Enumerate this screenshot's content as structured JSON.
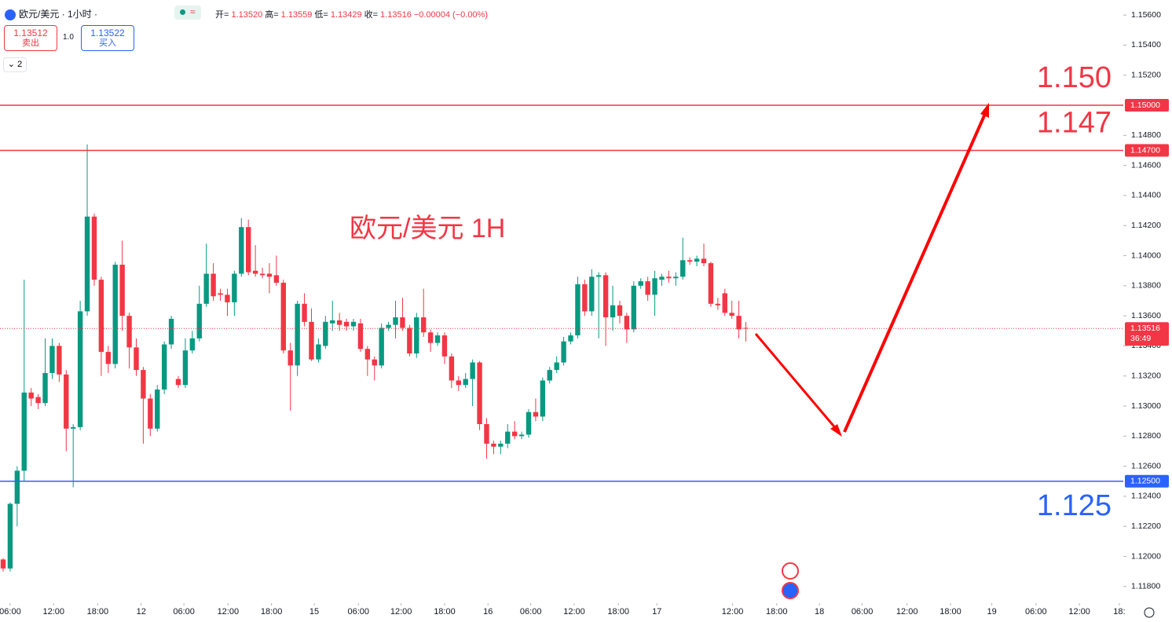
{
  "header": {
    "symbol": "欧元/美元 · 1小时 ·",
    "ohlc": [
      {
        "label": "开=",
        "value": "1.13520"
      },
      {
        "label": "高=",
        "value": "1.13559"
      },
      {
        "label": "低=",
        "value": "1.13429"
      },
      {
        "label": "收=",
        "value": "1.13516"
      }
    ],
    "change": "−0.00004 (−0.00%)",
    "sell_price": "1.13512",
    "sell_label": "卖出",
    "lot": "1.0",
    "buy_price": "1.13522",
    "buy_label": "买入",
    "indicator_count": "2"
  },
  "chart_data": {
    "type": "candlestick",
    "title": "欧元/美元 1H",
    "up_color": "#089981",
    "down_color": "#f23645",
    "open": [
      1.1198,
      1.1192,
      1.1235,
      1.1257,
      1.1309,
      1.1306,
      1.1302,
      1.1322,
      1.134,
      1.1321,
      1.1285,
      1.1286,
      1.1363,
      1.1426,
      1.1384,
      1.1336,
      1.1328,
      1.1394,
      1.136,
      1.1339,
      1.1324,
      1.1305,
      1.1285,
      1.1311,
      1.1341,
      1.1318,
      1.1314,
      1.1337,
      1.1345,
      1.1368,
      1.1388,
      1.1375,
      1.1374,
      1.1369,
      1.1388,
      1.1419,
      1.139,
      1.1388,
      1.1388,
      1.1387,
      1.1382,
      1.1337,
      1.1327,
      1.1368,
      1.1356,
      1.1331,
      1.134,
      1.1355,
      1.1357,
      1.1356,
      1.1353,
      1.1355,
      1.1338,
      1.1331,
      1.1327,
      1.1352,
      1.1354,
      1.1359,
      1.1352,
      1.1335,
      1.1359,
      1.1349,
      1.1342,
      1.1347,
      1.1333,
      1.1317,
      1.1314,
      1.1318,
      1.1329,
      1.1288,
      1.1275,
      1.1273,
      1.1275,
      1.1283,
      1.128,
      1.1281,
      1.1296,
      1.1293,
      1.1317,
      1.1324,
      1.1329,
      1.1343,
      1.1347,
      1.1381,
      1.1363,
      1.1386,
      1.1387,
      1.1359,
      1.1367,
      1.136,
      1.1351,
      1.138,
      1.1383,
      1.1374,
      1.1384,
      1.1386,
      1.1385,
      1.1386,
      1.1397,
      1.1396,
      1.1398,
      1.1395,
      1.1368,
      1.1375,
      1.1362,
      1.136,
      1.1352
    ],
    "high": [
      1.1199,
      1.1236,
      1.126,
      1.1384,
      1.1312,
      1.1308,
      1.1345,
      1.1345,
      1.1342,
      1.1324,
      1.1288,
      1.137,
      1.1474,
      1.1428,
      1.1386,
      1.134,
      1.1396,
      1.141,
      1.1362,
      1.1345,
      1.1326,
      1.1308,
      1.1314,
      1.1343,
      1.136,
      1.132,
      1.1345,
      1.135,
      1.138,
      1.1408,
      1.1395,
      1.1378,
      1.1378,
      1.139,
      1.1425,
      1.1424,
      1.1407,
      1.1392,
      1.1395,
      1.14,
      1.1384,
      1.1342,
      1.137,
      1.1375,
      1.1365,
      1.1345,
      1.136,
      1.137,
      1.1362,
      1.1358,
      1.1358,
      1.1358,
      1.134,
      1.1333,
      1.1355,
      1.1356,
      1.137,
      1.1372,
      1.1354,
      1.1362,
      1.1378,
      1.1351,
      1.1349,
      1.1349,
      1.1335,
      1.132,
      1.1322,
      1.1331,
      1.133,
      1.1292,
      1.1277,
      1.1277,
      1.1288,
      1.129,
      1.1283,
      1.1298,
      1.1305,
      1.1319,
      1.1326,
      1.1333,
      1.1346,
      1.1349,
      1.1386,
      1.1384,
      1.1391,
      1.1389,
      1.1389,
      1.138,
      1.137,
      1.1362,
      1.1383,
      1.1385,
      1.1386,
      1.139,
      1.1388,
      1.139,
      1.1389,
      1.1412,
      1.1399,
      1.14,
      1.1408,
      1.1396,
      1.1372,
      1.1378,
      1.137,
      1.137,
      1.13559
    ],
    "low": [
      1.119,
      1.119,
      1.122,
      1.125,
      1.13,
      1.1298,
      1.13,
      1.1318,
      1.1316,
      1.127,
      1.1246,
      1.1284,
      1.136,
      1.138,
      1.132,
      1.1322,
      1.1325,
      1.135,
      1.1325,
      1.132,
      1.1275,
      1.128,
      1.1283,
      1.1308,
      1.1338,
      1.1312,
      1.1312,
      1.1335,
      1.1343,
      1.1366,
      1.137,
      1.137,
      1.136,
      1.136,
      1.1386,
      1.1387,
      1.1386,
      1.1385,
      1.1375,
      1.138,
      1.1335,
      1.1297,
      1.132,
      1.1353,
      1.133,
      1.1329,
      1.1338,
      1.135,
      1.135,
      1.135,
      1.135,
      1.1336,
      1.132,
      1.1317,
      1.1325,
      1.135,
      1.1345,
      1.135,
      1.1333,
      1.1332,
      1.1346,
      1.1336,
      1.134,
      1.1328,
      1.1312,
      1.131,
      1.1312,
      1.13,
      1.1284,
      1.1265,
      1.1268,
      1.1268,
      1.1272,
      1.1278,
      1.1278,
      1.1279,
      1.129,
      1.129,
      1.1315,
      1.1322,
      1.1327,
      1.1341,
      1.1345,
      1.136,
      1.136,
      1.1345,
      1.134,
      1.135,
      1.1355,
      1.1342,
      1.1349,
      1.1378,
      1.137,
      1.136,
      1.138,
      1.1382,
      1.138,
      1.1384,
      1.1394,
      1.1393,
      1.1393,
      1.1366,
      1.1364,
      1.136,
      1.1358,
      1.1345,
      1.13429
    ],
    "close": [
      1.1192,
      1.1235,
      1.1257,
      1.1309,
      1.1305,
      1.1302,
      1.1322,
      1.134,
      1.1321,
      1.1285,
      1.1286,
      1.1363,
      1.1426,
      1.1384,
      1.1336,
      1.1328,
      1.1394,
      1.136,
      1.1339,
      1.1324,
      1.1305,
      1.1285,
      1.1311,
      1.1341,
      1.1358,
      1.1314,
      1.1337,
      1.1345,
      1.1368,
      1.1388,
      1.1373,
      1.1374,
      1.1369,
      1.1388,
      1.1419,
      1.1389,
      1.1388,
      1.1387,
      1.1386,
      1.1382,
      1.1337,
      1.1327,
      1.1368,
      1.1356,
      1.1331,
      1.1341,
      1.1356,
      1.1357,
      1.1354,
      1.1353,
      1.1356,
      1.1338,
      1.1331,
      1.1327,
      1.1352,
      1.1354,
      1.1359,
      1.1352,
      1.1335,
      1.1359,
      1.1349,
      1.1342,
      1.1347,
      1.1333,
      1.1317,
      1.1314,
      1.1318,
      1.1329,
      1.1288,
      1.1275,
      1.1273,
      1.1275,
      1.1283,
      1.128,
      1.1281,
      1.1296,
      1.1293,
      1.1317,
      1.1324,
      1.1329,
      1.1343,
      1.1347,
      1.1381,
      1.1363,
      1.1386,
      1.1387,
      1.1359,
      1.1367,
      1.136,
      1.1351,
      1.138,
      1.1383,
      1.1374,
      1.1385,
      1.1386,
      1.1385,
      1.1386,
      1.1397,
      1.1396,
      1.1398,
      1.1395,
      1.1368,
      1.1367,
      1.1362,
      1.136,
      1.1351,
      1.13516
    ],
    "ylim": [
      1.117,
      1.157
    ],
    "yticks": [
      {
        "value": 1.118,
        "label": "1.11800"
      },
      {
        "value": 1.12,
        "label": "1.12000"
      },
      {
        "value": 1.122,
        "label": "1.12200"
      },
      {
        "value": 1.124,
        "label": "1.12400"
      },
      {
        "value": 1.126,
        "label": "1.12600"
      },
      {
        "value": 1.128,
        "label": "1.12800"
      },
      {
        "value": 1.13,
        "label": "1.13000"
      },
      {
        "value": 1.132,
        "label": "1.13200"
      },
      {
        "value": 1.134,
        "label": "1.13400"
      },
      {
        "value": 1.136,
        "label": "1.13600"
      },
      {
        "value": 1.138,
        "label": "1.13800"
      },
      {
        "value": 1.14,
        "label": "1.14000"
      },
      {
        "value": 1.142,
        "label": "1.14200"
      },
      {
        "value": 1.144,
        "label": "1.14400"
      },
      {
        "value": 1.146,
        "label": "1.14600"
      },
      {
        "value": 1.148,
        "label": "1.14800"
      },
      {
        "value": 1.152,
        "label": "1.15200"
      },
      {
        "value": 1.154,
        "label": "1.15400"
      },
      {
        "value": 1.156,
        "label": "1.15600"
      }
    ],
    "xticks": [
      {
        "value": 1,
        "label": "06:00"
      },
      {
        "value": 7.2,
        "label": "12:00"
      },
      {
        "value": 13.5,
        "label": "18:00"
      },
      {
        "value": 19.7,
        "label": "12"
      },
      {
        "value": 25.8,
        "label": "06:00"
      },
      {
        "value": 32.1,
        "label": "12:00"
      },
      {
        "value": 38.3,
        "label": "18:00"
      },
      {
        "value": 44.4,
        "label": "15"
      },
      {
        "value": 50.7,
        "label": "06:00"
      },
      {
        "value": 56.8,
        "label": "12:00"
      },
      {
        "value": 63,
        "label": "18:00"
      },
      {
        "value": 69.2,
        "label": "16"
      },
      {
        "value": 75.3,
        "label": "06:00"
      },
      {
        "value": 81.5,
        "label": "12:00"
      },
      {
        "value": 87.8,
        "label": "18:00"
      },
      {
        "value": 93.3,
        "label": "17"
      },
      {
        "value": 104.1,
        "label": "12:00"
      },
      {
        "value": 110.4,
        "label": "18:00"
      },
      {
        "value": 116.5,
        "label": "18"
      },
      {
        "value": 122.6,
        "label": "06:00"
      },
      {
        "value": 129,
        "label": "12:00"
      },
      {
        "value": 135.2,
        "label": "18:00"
      },
      {
        "value": 141.1,
        "label": "19"
      },
      {
        "value": 147.4,
        "label": "06:00"
      },
      {
        "value": 153.6,
        "label": "12:00"
      },
      {
        "value": 159.3,
        "label": "18:"
      }
    ],
    "hlines": [
      {
        "value": 1.15,
        "label": "1.150",
        "axis_label": "1.15000",
        "color": "#f23645"
      },
      {
        "value": 1.147,
        "label": "1.147",
        "axis_label": "1.14700",
        "color": "#f23645"
      },
      {
        "value": 1.125,
        "label": "1.125",
        "axis_label": "1.12500",
        "color": "#2962ff"
      }
    ],
    "last_price_label": "1.13516",
    "countdown": "36:49"
  }
}
